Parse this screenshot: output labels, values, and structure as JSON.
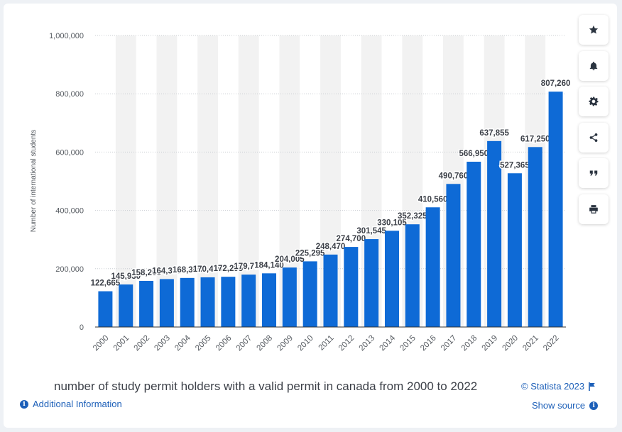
{
  "chart_data": {
    "type": "bar",
    "title": "number of study permit holders with a valid permit in canada from 2000 to 2022",
    "ylabel": "Number of international students",
    "xlabel": "",
    "ylim": [
      0,
      1000000
    ],
    "yticks": [
      "0",
      "200,000",
      "400,000",
      "600,000",
      "800,000",
      "1,000,000"
    ],
    "ytick_values": [
      0,
      200000,
      400000,
      600000,
      800000,
      1000000
    ],
    "categories": [
      "2000",
      "2001",
      "2002",
      "2003",
      "2004",
      "2005",
      "2006",
      "2007",
      "2008",
      "2009",
      "2010",
      "2011",
      "2012",
      "2013",
      "2014",
      "2015",
      "2016",
      "2017",
      "2018",
      "2019",
      "2020",
      "2021",
      "2022"
    ],
    "values": [
      122665,
      145930,
      158265,
      164395,
      168305,
      170470,
      172295,
      179780,
      184140,
      204005,
      225295,
      248470,
      274700,
      301545,
      330105,
      352325,
      410560,
      490760,
      566950,
      637855,
      527365,
      617250,
      807260
    ],
    "value_labels": [
      "122,665",
      "145,930",
      "158,265",
      "164,395",
      "168,305",
      "170,470",
      "172,295",
      "179,780",
      "184,140",
      "204,005",
      "225,295",
      "248,470",
      "274,700",
      "301,545",
      "330,105",
      "352,325",
      "410,560",
      "490,760",
      "566,950",
      "637,855",
      "527,365",
      "617,250",
      "807,260"
    ],
    "bar_color": "#0e6ad6",
    "grid": true,
    "legend": "none"
  },
  "footer": {
    "copyright": "© Statista 2023",
    "additional_info": "Additional Information",
    "show_source": "Show source"
  },
  "toolbar": {
    "buttons": [
      "star-icon",
      "bell-icon",
      "gear-icon",
      "share-icon",
      "quote-icon",
      "print-icon"
    ]
  },
  "colors": {
    "accent": "#1c5fb8",
    "band": "#f2f2f2",
    "text": "#3c4048"
  }
}
